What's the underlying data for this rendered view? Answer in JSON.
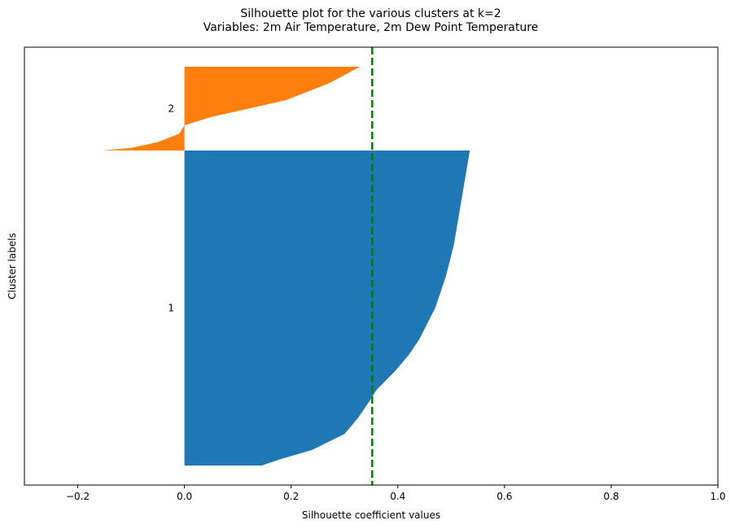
{
  "chart_data": {
    "type": "silhouette",
    "title_line1": "Silhouette plot for the various clusters at k=2",
    "title_line2": "Variables: 2m Air Temperature, 2m Dew Point Temperature",
    "xlabel": "Silhouette coefficient values",
    "ylabel": "Cluster labels",
    "xlim": [
      -0.3,
      1.0
    ],
    "xticks": [
      -0.2,
      0.0,
      0.2,
      0.4,
      0.6,
      0.8,
      1.0
    ],
    "xtick_labels": [
      "−0.2",
      "0.0",
      "0.2",
      "0.4",
      "0.6",
      "0.8",
      "1.0"
    ],
    "yticks": [],
    "average_silhouette": 0.352,
    "average_line_color": "#008000",
    "clusters": [
      {
        "label": "1",
        "color": "#1f77b4",
        "size_fraction": 0.79,
        "sorted_values_profile": [
          [
            0.0,
            0.145
          ],
          [
            0.02,
            0.18
          ],
          [
            0.05,
            0.24
          ],
          [
            0.1,
            0.3
          ],
          [
            0.15,
            0.325
          ],
          [
            0.2,
            0.345
          ],
          [
            0.24,
            0.36
          ],
          [
            0.3,
            0.395
          ],
          [
            0.35,
            0.42
          ],
          [
            0.4,
            0.44
          ],
          [
            0.5,
            0.47
          ],
          [
            0.6,
            0.49
          ],
          [
            0.7,
            0.505
          ],
          [
            0.8,
            0.515
          ],
          [
            0.9,
            0.525
          ],
          [
            0.97,
            0.532
          ],
          [
            1.0,
            0.535
          ]
        ]
      },
      {
        "label": "2",
        "color": "#ff7f0e",
        "size_fraction": 0.21,
        "sorted_values_profile": [
          [
            0.0,
            -0.155
          ],
          [
            0.03,
            -0.1
          ],
          [
            0.1,
            -0.05
          ],
          [
            0.2,
            -0.01
          ],
          [
            0.3,
            0.0
          ],
          [
            0.4,
            0.05
          ],
          [
            0.5,
            0.12
          ],
          [
            0.6,
            0.19
          ],
          [
            0.7,
            0.23
          ],
          [
            0.8,
            0.27
          ],
          [
            0.9,
            0.3
          ],
          [
            0.97,
            0.32
          ],
          [
            1.0,
            0.33
          ]
        ]
      }
    ]
  }
}
